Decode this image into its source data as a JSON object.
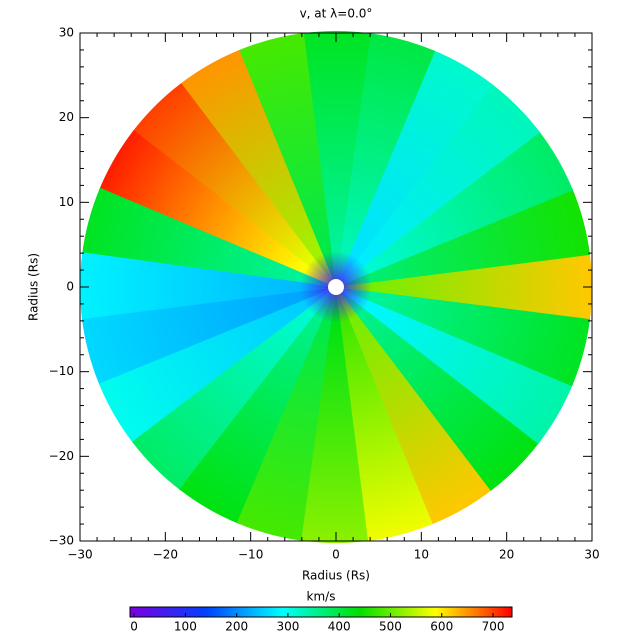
{
  "chart_data": {
    "type": "polar-heatmap",
    "title": "v, at λ=0.0°",
    "xlabel": "Radius (Rs)",
    "ylabel": "Radius (Rs)",
    "xlim": [
      -30,
      30
    ],
    "ylim": [
      -30,
      30
    ],
    "xticks": [
      {
        "value": -30,
        "label": "−30"
      },
      {
        "value": -20,
        "label": "−20"
      },
      {
        "value": -10,
        "label": "−10"
      },
      0,
      10,
      20,
      30
    ],
    "yticks": [
      {
        "value": -30,
        "label": "−30"
      },
      {
        "value": -20,
        "label": "−20"
      },
      {
        "value": -10,
        "label": "−10"
      },
      0,
      10,
      20,
      30
    ],
    "angles": [
      0,
      15,
      30,
      45,
      60,
      75,
      90,
      105,
      120,
      135,
      150,
      165,
      180,
      195,
      210,
      225,
      240,
      255,
      270,
      285,
      300,
      315,
      330,
      345
    ],
    "values": [
      620,
      450,
      380,
      330,
      320,
      400,
      420,
      480,
      650,
      700,
      720,
      420,
      280,
      260,
      300,
      380,
      430,
      480,
      520,
      580,
      620,
      430,
      340,
      420
    ],
    "inner_value": 60,
    "colorbar_label": "km/s",
    "clim": [
      -8,
      737
    ],
    "cticks": [
      0,
      100,
      200,
      300,
      400,
      500,
      600,
      700
    ],
    "colormap": [
      "#7a00e0",
      "#0040ff",
      "#00ffff",
      "#00e000",
      "#ffff00",
      "#ff0000"
    ]
  }
}
